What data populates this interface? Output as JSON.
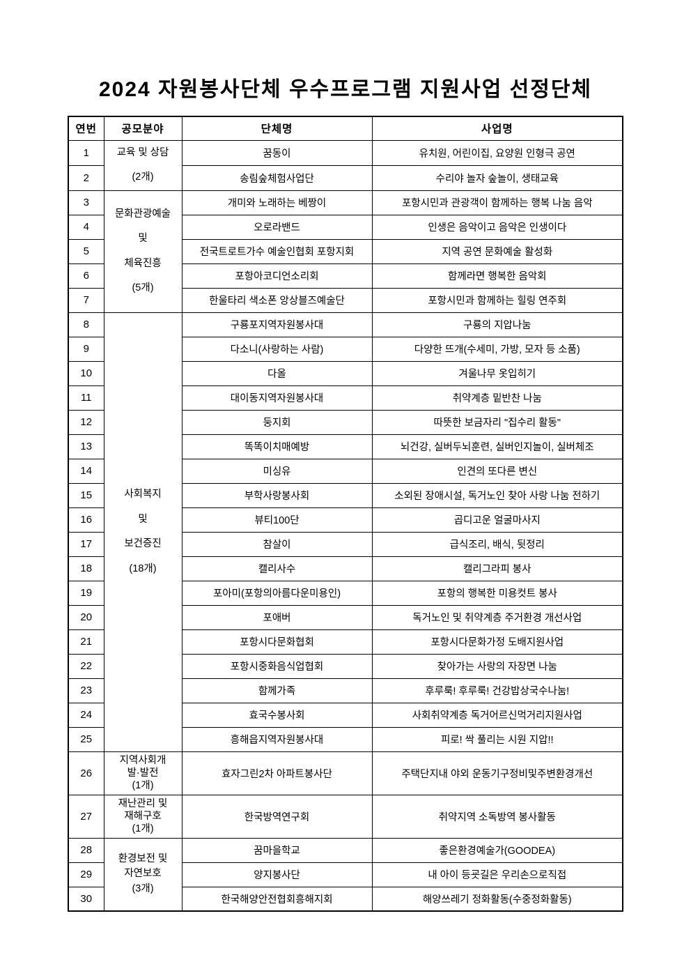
{
  "page": {
    "title": "2024 자원봉사단체 우수프로그램 지원사업 선정단체"
  },
  "colors": {
    "text": "#000000",
    "background": "#ffffff",
    "border": "#000000"
  },
  "table": {
    "headers": {
      "no": "연번",
      "category": "공모분야",
      "org": "단체명",
      "project": "사업명"
    },
    "groups": [
      {
        "category": "교육 및 상담\n(2개)",
        "rows": [
          {
            "no": "1",
            "org": "꿈동이",
            "project": "유치원, 어린이집, 요양원 인형극 공연"
          },
          {
            "no": "2",
            "org": "송림숲체험사업단",
            "project": "수리야 놀자 숲놀이, 생태교육"
          }
        ]
      },
      {
        "category": "문화관광예술\n및\n체육진흥\n(5개)",
        "rows": [
          {
            "no": "3",
            "org": "개미와 노래하는 베짱이",
            "project": "포항시민과 관광객이 함께하는 행복 나눔 음악"
          },
          {
            "no": "4",
            "org": "오로라밴드",
            "project": "인생은 음악이고 음악은 인생이다"
          },
          {
            "no": "5",
            "org": "전국트로트가수 예술인협회 포항지회",
            "project": "지역 공연 문화예술 활성화"
          },
          {
            "no": "6",
            "org": "포항아코디언소리회",
            "project": "함께라면 행복한 음악회"
          },
          {
            "no": "7",
            "org": "한울타리 색소폰 앙상블즈예술단",
            "project": "포항시민과 함께하는 힐링 연주회"
          }
        ]
      },
      {
        "category": "사회복지\n및\n보건증진\n(18개)",
        "rows": [
          {
            "no": "8",
            "org": "구룡포지역자원봉사대",
            "project": "구룡의 지압나눔"
          },
          {
            "no": "9",
            "org": "다소니(사랑하는 사람)",
            "project": "다양한 뜨개(수세미, 가방, 모자 등 소품)"
          },
          {
            "no": "10",
            "org": "다올",
            "project": "겨울나무 옷입히기"
          },
          {
            "no": "11",
            "org": "대이동지역자원봉사대",
            "project": "취약계층 밑반찬 나눔"
          },
          {
            "no": "12",
            "org": "둥지회",
            "project": "따뜻한 보금자리 \"집수리 활동\""
          },
          {
            "no": "13",
            "org": "똑똑이치매예방",
            "project": "뇌건강, 실버두뇌훈련, 실버인지놀이, 실버체조"
          },
          {
            "no": "14",
            "org": "미싱유",
            "project": "인견의 또다른 변신"
          },
          {
            "no": "15",
            "org": "부학사랑봉사회",
            "project": "소외된 장애시설, 독거노인 찾아 사랑 나눔 전하기"
          },
          {
            "no": "16",
            "org": "뷰티100단",
            "project": "곱디고운 얼굴마사지"
          },
          {
            "no": "17",
            "org": "참살이",
            "project": "급식조리, 배식, 뒷정리"
          },
          {
            "no": "18",
            "org": "캘리사수",
            "project": "캘리그라피 봉사"
          },
          {
            "no": "19",
            "org": "포아미(포항의아름다운미용인)",
            "project": "포항의 행복한 미용컷트 봉사"
          },
          {
            "no": "20",
            "org": "포애버",
            "project": "독거노인 및 취약계층 주거환경 개선사업"
          },
          {
            "no": "21",
            "org": "포항시다문화협회",
            "project": "포항시다문화가정 도배지원사업"
          },
          {
            "no": "22",
            "org": "포항시중화음식업협회",
            "project": "찾아가는 사랑의 자장면 나눔"
          },
          {
            "no": "23",
            "org": "함께가족",
            "project": "후루룩! 후루룩! 건강밥상국수나눔!"
          },
          {
            "no": "24",
            "org": "효국수봉사회",
            "project": "사회취약계층 독거어르신먹거리지원사업"
          },
          {
            "no": "25",
            "org": "흥해읍지역자원봉사대",
            "project": "피로! 싹 풀리는 시원 지압!!"
          }
        ]
      },
      {
        "category": "지역사회개\n발·발전\n(1개)",
        "rows": [
          {
            "no": "26",
            "org": "효자그린2차 아파트봉사단",
            "project": "주택단지내 야외 운동기구정비및주변환경개선"
          }
        ]
      },
      {
        "category": "재난관리 및\n재해구호\n(1개)",
        "rows": [
          {
            "no": "27",
            "org": "한국방역연구회",
            "project": "취약지역 소독방역 봉사활동"
          }
        ]
      },
      {
        "category": "환경보전 및\n자연보호\n(3개)",
        "rows": [
          {
            "no": "28",
            "org": "꿈마을학교",
            "project": "좋은환경예술가(GOODEA)"
          },
          {
            "no": "29",
            "org": "양지봉사단",
            "project": "내 아이 등굣길은 우리손으로직접"
          },
          {
            "no": "30",
            "org": "한국해양안전협회흥해지회",
            "project": "해양쓰레기 정화활동(수중정화활동)"
          }
        ]
      }
    ]
  }
}
